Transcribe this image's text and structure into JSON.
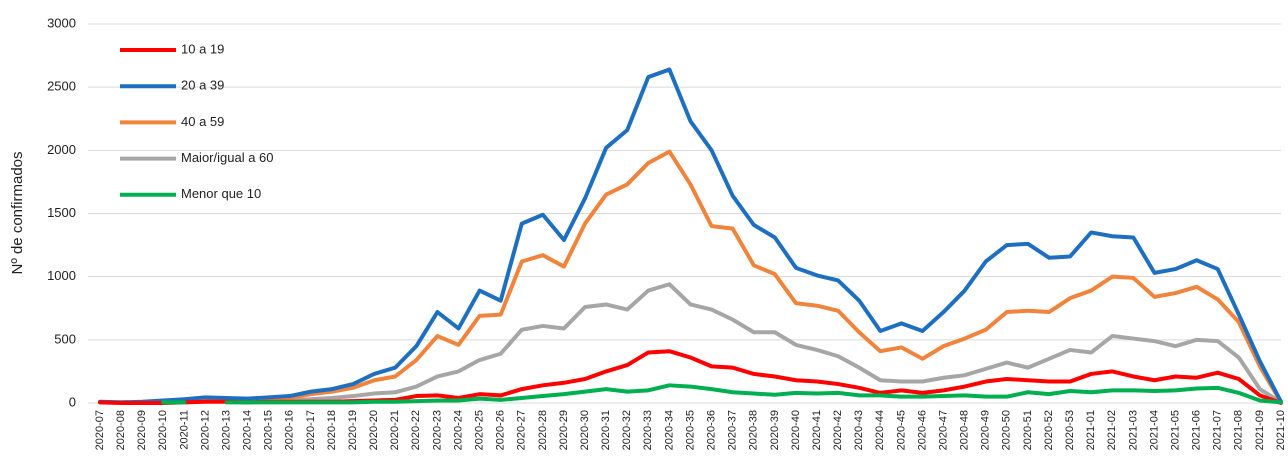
{
  "chart_data": {
    "type": "line",
    "y_label": "Nº de confirmados",
    "categories": [
      "2020-07",
      "2020-08",
      "2020-09",
      "2020-10",
      "2020-11",
      "2020-12",
      "2020-13",
      "2020-14",
      "2020-15",
      "2020-16",
      "2020-17",
      "2020-18",
      "2020-19",
      "2020-20",
      "2020-21",
      "2020-22",
      "2020-23",
      "2020-24",
      "2020-25",
      "2020-26",
      "2020-27",
      "2020-28",
      "2020-29",
      "2020-30",
      "2020-31",
      "2020-32",
      "2020-33",
      "2020-34",
      "2020-35",
      "2020-36",
      "2020-37",
      "2020-38",
      "2020-39",
      "2020-40",
      "2020-41",
      "2020-42",
      "2020-43",
      "2020-44",
      "2020-45",
      "2020-46",
      "2020-47",
      "2020-48",
      "2020-49",
      "2020-50",
      "2020-51",
      "2020-52",
      "2020-53",
      "2021-01",
      "2021-02",
      "2021-03",
      "2021-04",
      "2021-05",
      "2021-06",
      "2021-07",
      "2021-08",
      "2021-09",
      "2021-10"
    ],
    "series": [
      {
        "name": "10 a 19",
        "color": "#ff0000",
        "values": [
          5,
          0,
          0,
          0,
          5,
          10,
          10,
          5,
          10,
          10,
          10,
          10,
          15,
          20,
          25,
          55,
          60,
          40,
          70,
          60,
          110,
          140,
          160,
          190,
          250,
          300,
          400,
          410,
          360,
          290,
          280,
          230,
          210,
          180,
          170,
          150,
          120,
          80,
          100,
          80,
          100,
          130,
          170,
          190,
          180,
          170,
          170,
          230,
          250,
          210,
          180,
          210,
          200,
          240,
          190,
          60,
          0
        ]
      },
      {
        "name": "20 a 39",
        "color": "#1f6fc0",
        "values": [
          10,
          5,
          10,
          20,
          30,
          45,
          40,
          35,
          45,
          55,
          90,
          110,
          150,
          230,
          280,
          450,
          720,
          590,
          890,
          810,
          1420,
          1490,
          1290,
          1620,
          2020,
          2160,
          2580,
          2640,
          2230,
          2000,
          1640,
          1410,
          1310,
          1070,
          1010,
          970,
          810,
          570,
          630,
          570,
          720,
          890,
          1120,
          1250,
          1260,
          1150,
          1160,
          1350,
          1320,
          1310,
          1030,
          1060,
          1130,
          1060,
          700,
          330,
          10
        ]
      },
      {
        "name": "40 a 59",
        "color": "#f0843c",
        "values": [
          5,
          5,
          5,
          10,
          20,
          30,
          30,
          25,
          35,
          40,
          70,
          90,
          120,
          180,
          210,
          340,
          530,
          460,
          690,
          700,
          1120,
          1170,
          1080,
          1420,
          1650,
          1730,
          1900,
          1990,
          1730,
          1400,
          1380,
          1090,
          1020,
          790,
          770,
          730,
          560,
          410,
          440,
          350,
          450,
          510,
          580,
          720,
          730,
          720,
          830,
          890,
          1000,
          990,
          840,
          870,
          920,
          820,
          640,
          290,
          5
        ]
      },
      {
        "name": "Maior/igual a 60",
        "color": "#a6a6a6",
        "values": [
          5,
          5,
          5,
          5,
          10,
          15,
          15,
          15,
          20,
          20,
          30,
          40,
          55,
          75,
          85,
          130,
          210,
          250,
          340,
          390,
          580,
          610,
          590,
          760,
          780,
          740,
          890,
          940,
          780,
          740,
          660,
          560,
          560,
          460,
          420,
          370,
          280,
          180,
          170,
          170,
          200,
          220,
          270,
          320,
          280,
          350,
          420,
          400,
          530,
          510,
          490,
          450,
          500,
          490,
          360,
          110,
          5
        ]
      },
      {
        "name": "Menor que 10",
        "color": "#00b050",
        "values": [
          null,
          null,
          null,
          5,
          5,
          null,
          5,
          5,
          5,
          5,
          5,
          5,
          5,
          10,
          10,
          15,
          20,
          20,
          35,
          25,
          40,
          55,
          70,
          90,
          110,
          90,
          100,
          140,
          130,
          110,
          85,
          75,
          65,
          80,
          75,
          80,
          60,
          60,
          50,
          50,
          55,
          60,
          50,
          50,
          85,
          70,
          95,
          85,
          100,
          100,
          95,
          100,
          115,
          120,
          80,
          20,
          5
        ]
      }
    ],
    "ylim": [
      0,
      3000
    ],
    "yticks": [
      0,
      500,
      1000,
      1500,
      2000,
      2500,
      3000
    ],
    "grid": true,
    "legend": "upper-left"
  }
}
